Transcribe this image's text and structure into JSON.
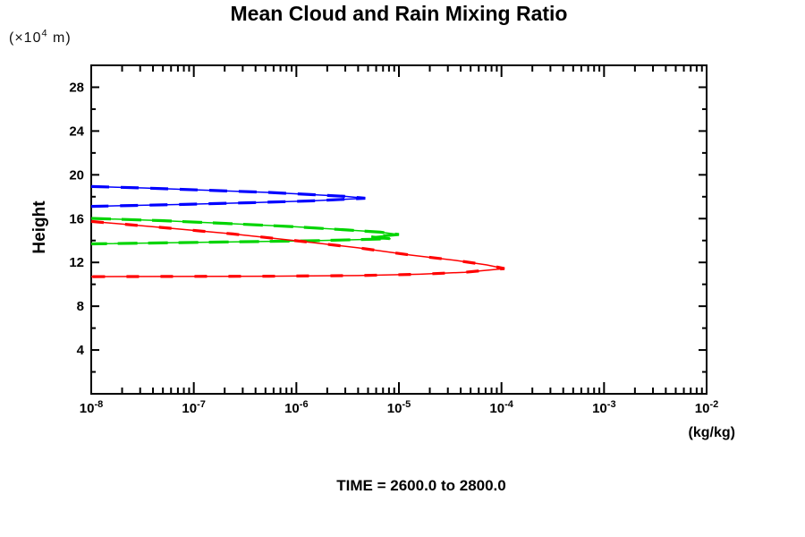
{
  "chart_data": {
    "type": "line",
    "title": "Mean Cloud and Rain Mixing Ratio",
    "annotation": "TIME = 2600.0 to 2800.0",
    "grid": false,
    "legend": "none",
    "x_axis": {
      "label": "(kg/kg)",
      "scale": "log",
      "min": 1e-08,
      "max": 0.01,
      "tick_exponents": [
        -8,
        -7,
        -6,
        -5,
        -4,
        -3,
        -2
      ],
      "tick_labels": [
        "10⁻⁸",
        "10⁻⁷",
        "10⁻⁶",
        "10⁻⁵",
        "10⁻⁴",
        "10⁻³",
        "10⁻²"
      ]
    },
    "y_axis": {
      "label": "Height",
      "unit_prefix": "(×10",
      "unit_exponent": "4",
      "unit_suffix": " m)",
      "min": 0,
      "max": 30,
      "major_ticks": [
        4,
        8,
        12,
        16,
        20,
        24,
        28
      ],
      "minor_tick_step": 2
    },
    "series": [
      {
        "name": "series-blue",
        "color": "#0000ff",
        "dash": "20 13",
        "points": [
          [
            1e-08,
            18.93
          ],
          [
            3.2e-08,
            18.8
          ],
          [
            1.3e-07,
            18.6
          ],
          [
            5.4e-07,
            18.39
          ],
          [
            1.45e-06,
            18.19
          ],
          [
            3e-06,
            18.03
          ],
          [
            4.7e-06,
            17.86
          ],
          [
            1.45e-06,
            17.62
          ],
          [
            3.5e-07,
            17.45
          ],
          [
            7e-08,
            17.29
          ],
          [
            1e-08,
            17.12
          ]
        ]
      },
      {
        "name": "series-green",
        "color": "#00d400",
        "dash": "22 12",
        "points": [
          [
            1e-08,
            16.02
          ],
          [
            4.8e-08,
            15.82
          ],
          [
            2.4e-07,
            15.53
          ],
          [
            9.8e-07,
            15.25
          ],
          [
            3.2e-06,
            14.96
          ],
          [
            6.6e-06,
            14.76
          ],
          [
            1e-05,
            14.55
          ],
          [
            5.4e-06,
            14.33
          ],
          [
            8.3e-06,
            14.16
          ],
          [
            1.45e-06,
            13.98
          ],
          [
            1.95e-07,
            13.86
          ],
          [
            1e-08,
            13.69
          ]
        ]
      },
      {
        "name": "series-red",
        "color": "#ff0000",
        "dash": "14 24",
        "points": [
          [
            1e-08,
            15.74
          ],
          [
            4.8e-08,
            15.2
          ],
          [
            2.4e-07,
            14.6
          ],
          [
            1.2e-06,
            13.9
          ],
          [
            4e-06,
            13.33
          ],
          [
            1.3e-05,
            12.67
          ],
          [
            3.6e-05,
            12.18
          ],
          [
            7.2e-05,
            11.77
          ],
          [
            0.000107,
            11.44
          ],
          [
            4.4e-05,
            11.1
          ],
          [
            1.6e-05,
            10.92
          ],
          [
            4e-06,
            10.8
          ],
          [
            5.4e-07,
            10.74
          ],
          [
            1e-08,
            10.7
          ]
        ]
      }
    ]
  }
}
